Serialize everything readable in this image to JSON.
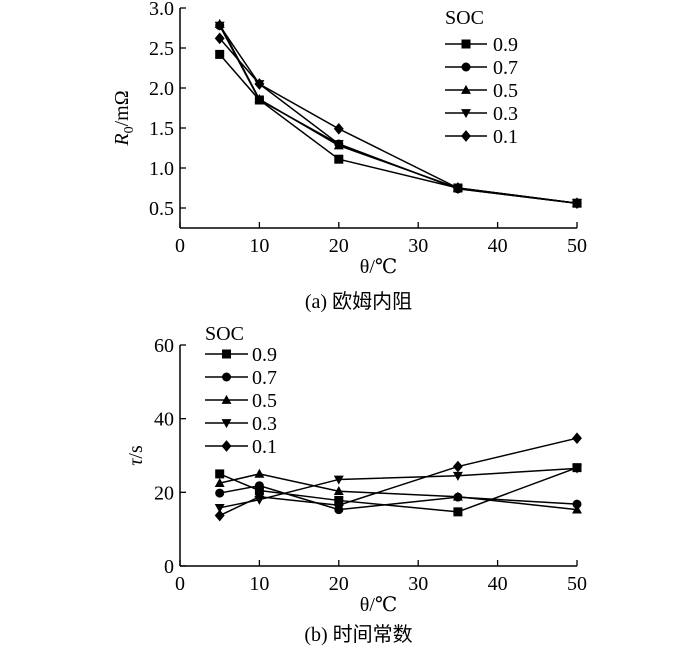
{
  "chart_data": [
    {
      "type": "line",
      "caption": "(a) 欧姆内阻",
      "xlabel": "θ/℃",
      "ylabel": "R0/mΩ",
      "ylabel_main": "R",
      "ylabel_sub": "0",
      "ylabel_unit": "/mΩ",
      "xlim": [
        0,
        50
      ],
      "ylim": [
        0.25,
        3.0
      ],
      "xticks": [
        0,
        10,
        20,
        30,
        40,
        50
      ],
      "xtick_labels": [
        "0",
        "10",
        "20",
        "30",
        "40",
        "50"
      ],
      "yticks": [
        0.5,
        1.0,
        1.5,
        2.0,
        2.5,
        3.0
      ],
      "ytick_labels": [
        "0.5",
        "1.0",
        "1.5",
        "2.0",
        "2.5",
        "3.0"
      ],
      "legend_title": "SOC",
      "legend_position": "top-right",
      "x": [
        5,
        10,
        20,
        35,
        50
      ],
      "series": [
        {
          "name": "0.9",
          "marker": "square",
          "values": [
            2.42,
            1.85,
            1.11,
            0.75,
            0.56
          ]
        },
        {
          "name": "0.7",
          "marker": "circle",
          "values": [
            2.78,
            1.85,
            1.3,
            0.74,
            0.56
          ]
        },
        {
          "name": "0.5",
          "marker": "triangle-up",
          "values": [
            2.8,
            1.86,
            1.28,
            0.75,
            0.56
          ]
        },
        {
          "name": "0.3",
          "marker": "triangle-down",
          "values": [
            2.78,
            2.05,
            1.3,
            0.74,
            0.56
          ]
        },
        {
          "name": "0.1",
          "marker": "diamond",
          "values": [
            2.62,
            2.05,
            1.49,
            0.75,
            0.56
          ]
        }
      ]
    },
    {
      "type": "line",
      "caption": "(b) 时间常数",
      "xlabel": "θ/℃",
      "ylabel": "τ/s",
      "ylabel_main": "τ",
      "ylabel_sub": "",
      "ylabel_unit": "/s",
      "xlim": [
        0,
        50
      ],
      "ylim": [
        0,
        60
      ],
      "xticks": [
        0,
        10,
        20,
        30,
        40,
        50
      ],
      "xtick_labels": [
        "0",
        "10",
        "20",
        "30",
        "40",
        "50"
      ],
      "yticks": [
        0,
        20,
        40,
        60
      ],
      "ytick_labels": [
        "0",
        "20",
        "40",
        "60"
      ],
      "legend_title": "SOC",
      "legend_position": "top-left",
      "x": [
        5,
        10,
        20,
        35,
        50
      ],
      "series": [
        {
          "name": "0.9",
          "marker": "square",
          "values": [
            25.0,
            20.5,
            17.8,
            14.7,
            26.7
          ]
        },
        {
          "name": "0.7",
          "marker": "circle",
          "values": [
            19.8,
            21.8,
            15.3,
            18.7,
            16.8
          ]
        },
        {
          "name": "0.5",
          "marker": "triangle-up",
          "values": [
            22.5,
            25.0,
            20.3,
            18.8,
            15.3
          ]
        },
        {
          "name": "0.3",
          "marker": "triangle-down",
          "values": [
            15.8,
            18.0,
            23.5,
            24.5,
            26.5
          ]
        },
        {
          "name": "0.1",
          "marker": "diamond",
          "values": [
            13.7,
            18.8,
            16.5,
            27.0,
            34.7
          ]
        }
      ]
    }
  ]
}
